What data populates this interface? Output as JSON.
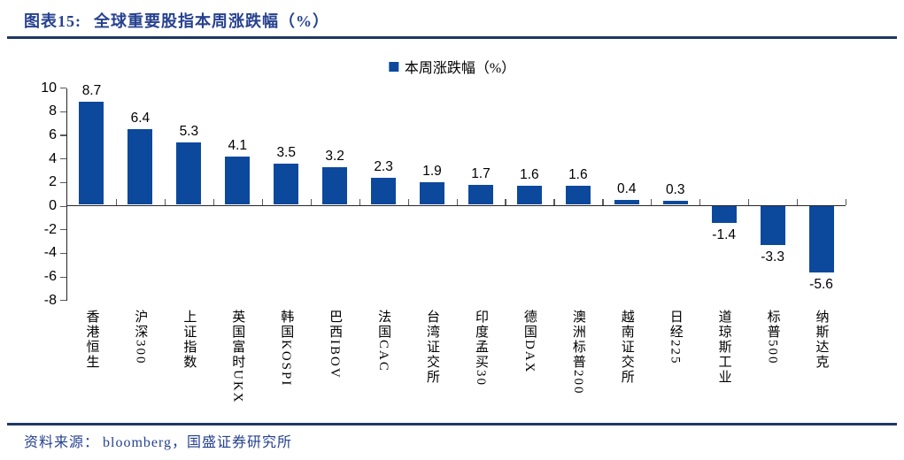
{
  "header": {
    "title_prefix": "图表15:",
    "title": "全球重要股指本周涨跌幅（%）"
  },
  "legend": {
    "label": "本周涨跌幅（%）"
  },
  "chart_data": {
    "type": "bar",
    "title": "本周涨跌幅（%）",
    "categories": [
      "香港恒生",
      "沪深300",
      "上证指数",
      "英国富时UKX",
      "韩国KOSPI",
      "巴西IBOV",
      "法国CAC",
      "台湾证交所",
      "印度孟买30",
      "德国DAX",
      "澳洲标普200",
      "越南证交所",
      "日经225",
      "道琼斯工业",
      "标普500",
      "纳斯达克"
    ],
    "values": [
      8.7,
      6.4,
      5.3,
      4.1,
      3.5,
      3.2,
      2.3,
      1.9,
      1.7,
      1.6,
      1.6,
      0.4,
      0.3,
      -1.4,
      -3.3,
      -5.6
    ],
    "xlabel": "",
    "ylabel": "",
    "ylim": [
      -8,
      10
    ],
    "yticks": [
      10,
      8,
      6,
      4,
      2,
      0,
      -2,
      -4,
      -6,
      -8
    ],
    "grid": false,
    "legend_position": "top-center",
    "value_labels": true
  },
  "footer": {
    "prefix": "资料来源：",
    "source": "bloomberg，国盛证券研究所"
  },
  "colors": {
    "bar": "#0C499C",
    "accent_text": "#26418F",
    "rule": "#1F3864",
    "axis": "#262626",
    "tick": "#595959"
  }
}
